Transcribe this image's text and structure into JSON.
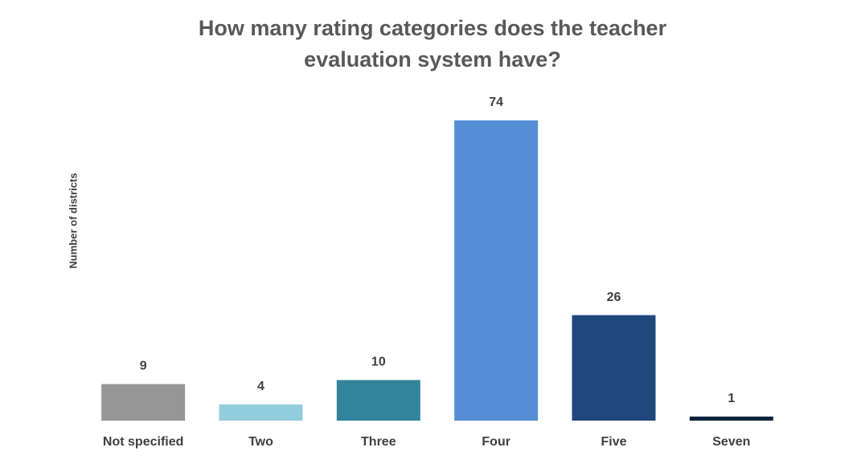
{
  "chart_data": {
    "type": "bar",
    "title": "How many rating categories does the teacher evaluation system have?",
    "y_label": "Number of districts",
    "categories": [
      "Not specified",
      "Two",
      "Three",
      "Four",
      "Five",
      "Seven"
    ],
    "values": [
      9,
      4,
      10,
      74,
      26,
      1
    ],
    "colors": [
      "#969696",
      "#92cddc",
      "#31849b",
      "#558ed5",
      "#1f497d",
      "#0f243e"
    ],
    "data_labels": true
  }
}
